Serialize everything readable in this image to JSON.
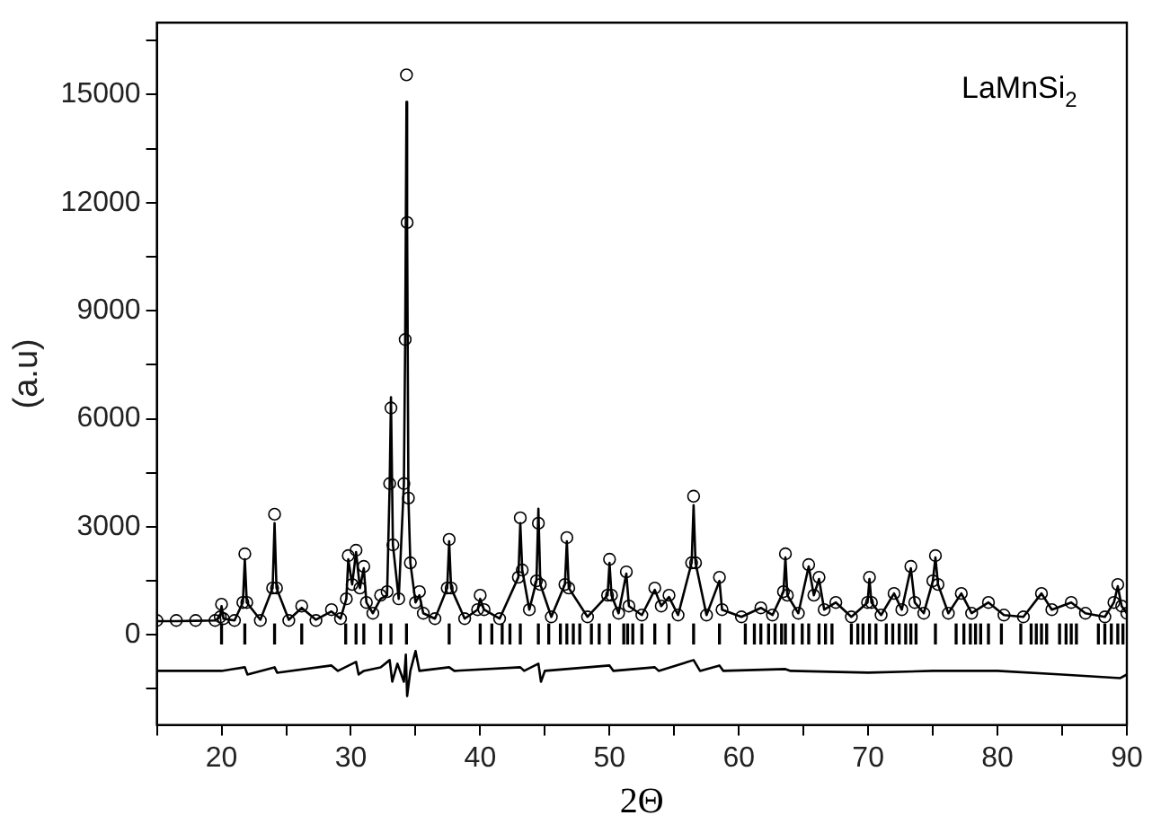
{
  "chart_data": {
    "type": "scatter",
    "xlabel": "2Θ",
    "ylabel": "(a.u)",
    "annotations": [
      "LaMnSi$_{2}$"
    ],
    "xlim": [
      15,
      90
    ],
    "xticks": [
      {
        "value": 15,
        "label": null
      },
      20,
      {
        "value": 25,
        "label": null
      },
      30,
      {
        "value": 35,
        "label": null
      },
      40,
      {
        "value": 45,
        "label": null
      },
      50,
      {
        "value": 55,
        "label": null
      },
      60,
      {
        "value": 65,
        "label": null
      },
      70,
      {
        "value": 75,
        "label": null
      },
      80,
      {
        "value": 85,
        "label": null
      },
      90
    ],
    "ylim": [
      -2500,
      17000
    ],
    "yticks": [
      {
        "value": -1500,
        "label": null
      },
      0,
      {
        "value": 1500,
        "label": null
      },
      3000,
      {
        "value": 4500,
        "label": null
      },
      6000,
      {
        "value": 7500,
        "label": null
      },
      9000,
      {
        "value": 10500,
        "label": null
      },
      12000,
      {
        "value": 13500,
        "label": null
      },
      15000,
      {
        "value": 16500,
        "label": null
      }
    ],
    "grid": false,
    "legend": false,
    "series": [
      {
        "marker": "circle",
        "color": "#000000",
        "x": [
          15,
          16.5,
          18,
          19.5,
          19.9,
          20.0,
          20.15,
          21,
          21.65,
          21.8,
          21.95,
          23,
          23.95,
          24.1,
          24.25,
          25.2,
          26.2,
          27.3,
          28.5,
          29.2,
          29.65,
          29.8,
          30.1,
          30.4,
          30.7,
          31.0,
          31.2,
          31.7,
          32.3,
          32.8,
          33.0,
          33.1,
          33.25,
          33.7,
          34.1,
          34.2,
          34.3,
          34.35,
          34.45,
          34.6,
          35.0,
          35.3,
          35.6,
          36.5,
          37.45,
          37.6,
          37.75,
          38.8,
          39.8,
          40.0,
          40.3,
          41.5,
          42.95,
          43.1,
          43.25,
          43.8,
          44.35,
          44.5,
          44.65,
          45.5,
          46.55,
          46.7,
          46.85,
          48.3,
          49.85,
          50.0,
          50.15,
          50.7,
          51.3,
          51.5,
          52.5,
          53.5,
          54.0,
          54.6,
          55.3,
          56.35,
          56.5,
          56.65,
          57.5,
          58.5,
          58.7,
          60.2,
          61.7,
          62.6,
          63.45,
          63.6,
          63.75,
          64.6,
          65.4,
          65.8,
          66.2,
          66.6,
          67.5,
          68.7,
          69.95,
          70.1,
          70.25,
          71.0,
          72.0,
          72.6,
          73.3,
          73.6,
          74.3,
          75.0,
          75.2,
          75.4,
          76.2,
          77.2,
          78.0,
          79.3,
          80.5,
          82.0,
          83.4,
          84.2,
          85.7,
          86.8,
          88.3,
          89.0,
          89.3,
          89.6,
          90
        ],
        "values": [
          400,
          400,
          400,
          400,
          500,
          850,
          450,
          400,
          900,
          2250,
          900,
          400,
          1300,
          3350,
          1300,
          400,
          800,
          400,
          700,
          450,
          1000,
          2200,
          1400,
          2350,
          1300,
          1900,
          900,
          600,
          1100,
          1200,
          4200,
          6300,
          2500,
          1000,
          4200,
          8200,
          15550,
          11450,
          3800,
          2000,
          900,
          1200,
          600,
          450,
          1300,
          2650,
          1300,
          450,
          700,
          1100,
          700,
          450,
          1600,
          3250,
          1800,
          700,
          1500,
          3100,
          1400,
          500,
          1400,
          2700,
          1300,
          500,
          1100,
          2100,
          1100,
          600,
          1750,
          800,
          550,
          1300,
          800,
          1100,
          550,
          2000,
          3850,
          2000,
          550,
          1600,
          700,
          500,
          750,
          550,
          1200,
          2250,
          1100,
          600,
          1950,
          1100,
          1600,
          700,
          900,
          500,
          900,
          1600,
          900,
          550,
          1150,
          700,
          1900,
          900,
          600,
          1500,
          2200,
          1400,
          600,
          1150,
          600,
          900,
          550,
          500,
          1150,
          700,
          900,
          600,
          500,
          900,
          1400,
          800,
          600
        ]
      },
      {
        "type": "line",
        "marker": "none",
        "color": "#000000",
        "x": [
          15,
          16.5,
          18,
          19.5,
          19.9,
          20.0,
          20.15,
          21,
          21.65,
          21.8,
          21.95,
          23,
          23.95,
          24.1,
          24.25,
          25.2,
          26.2,
          27.3,
          28.5,
          29.2,
          29.65,
          29.8,
          30.1,
          30.4,
          30.7,
          31.0,
          31.2,
          31.7,
          32.3,
          32.8,
          33.0,
          33.1,
          33.25,
          33.7,
          34.1,
          34.2,
          34.3,
          34.35,
          34.45,
          34.6,
          35.0,
          35.3,
          35.6,
          36.5,
          37.45,
          37.6,
          37.75,
          38.8,
          39.8,
          40.0,
          40.3,
          41.5,
          42.95,
          43.1,
          43.25,
          43.8,
          44.35,
          44.5,
          44.65,
          45.5,
          46.55,
          46.7,
          46.85,
          48.3,
          49.85,
          50.0,
          50.15,
          50.7,
          51.3,
          51.5,
          52.5,
          53.5,
          54.0,
          54.6,
          55.3,
          56.35,
          56.5,
          56.65,
          57.5,
          58.5,
          58.7,
          60.2,
          61.7,
          62.6,
          63.45,
          63.6,
          63.75,
          64.6,
          65.4,
          65.8,
          66.2,
          66.6,
          67.5,
          68.7,
          69.95,
          70.1,
          70.25,
          71.0,
          72.0,
          72.6,
          73.3,
          73.6,
          74.3,
          75.0,
          75.2,
          75.4,
          76.2,
          77.2,
          78.0,
          79.3,
          80.5,
          82.0,
          83.4,
          84.2,
          85.7,
          86.8,
          88.3,
          89.0,
          89.3,
          89.6,
          90
        ],
        "values": [
          380,
          380,
          390,
          400,
          500,
          800,
          450,
          400,
          900,
          2100,
          900,
          420,
          1300,
          3100,
          1300,
          420,
          750,
          420,
          650,
          450,
          1000,
          2100,
          1400,
          2300,
          1300,
          1850,
          900,
          600,
          1000,
          1100,
          4200,
          6600,
          2500,
          1000,
          4200,
          8200,
          14800,
          11450,
          3800,
          2000,
          900,
          1100,
          600,
          450,
          1300,
          2600,
          1300,
          450,
          700,
          1000,
          700,
          450,
          1600,
          3100,
          1800,
          700,
          1500,
          3500,
          1400,
          500,
          1400,
          2600,
          1300,
          500,
          1100,
          2000,
          1100,
          600,
          1700,
          800,
          550,
          1250,
          800,
          1050,
          550,
          2000,
          3600,
          2000,
          550,
          1500,
          700,
          500,
          750,
          550,
          1200,
          2150,
          1100,
          600,
          1900,
          1100,
          1550,
          700,
          900,
          500,
          900,
          1550,
          900,
          550,
          1150,
          700,
          1850,
          900,
          600,
          1500,
          2150,
          1400,
          600,
          1150,
          600,
          900,
          550,
          500,
          1150,
          700,
          900,
          600,
          500,
          900,
          1350,
          800,
          600
        ]
      },
      {
        "type": "bar",
        "color": "#000000",
        "base": [
          -250,
          -250,
          -250,
          -250,
          -250,
          -250,
          -250,
          -250,
          -250,
          -250,
          -250,
          -250,
          -250,
          -250,
          -250,
          -250,
          -250,
          -250,
          -250,
          -250,
          -250,
          -250,
          -250,
          -250,
          -250,
          -250,
          -250,
          -250,
          -250,
          -250,
          -250,
          -250,
          -250,
          -250,
          -250,
          -250,
          -250,
          -250,
          -250,
          -250,
          -250,
          -250,
          -250,
          -250,
          -250,
          -250,
          -250,
          -250,
          -250,
          -250,
          -250,
          -250,
          -250,
          -250,
          -250,
          -250,
          -250,
          -250,
          -250,
          -250,
          -250,
          -250,
          -250,
          -250,
          -250,
          -250,
          -250,
          -250,
          -250,
          -250,
          -250,
          -250,
          -250,
          -250,
          -250,
          -250,
          -250,
          -250,
          -250
        ],
        "x": [
          20,
          21.8,
          24.1,
          26.2,
          29.6,
          30.4,
          31.0,
          32.3,
          33.1,
          34.3,
          37.6,
          40.0,
          40.9,
          41.7,
          42.3,
          43.1,
          44.5,
          45.3,
          46.2,
          46.7,
          47.2,
          47.7,
          48.6,
          49.2,
          50.0,
          51.1,
          51.4,
          51.8,
          52.5,
          53.5,
          54.6,
          56.5,
          58.5,
          60.5,
          61.2,
          61.7,
          62.3,
          62.8,
          63.3,
          63.6,
          64.2,
          64.9,
          65.4,
          66.2,
          66.7,
          67.2,
          68.7,
          69.2,
          69.6,
          70.1,
          70.6,
          71.4,
          71.9,
          72.4,
          72.9,
          73.3,
          73.7,
          75.2,
          76.8,
          77.4,
          77.9,
          78.3,
          78.7,
          79.3,
          80.3,
          81.8,
          82.6,
          83.0,
          83.4,
          83.8,
          84.8,
          85.3,
          85.7,
          86.1,
          87.8,
          88.3,
          88.8,
          89.3,
          89.7
        ],
        "values": [
          550,
          550,
          550,
          550,
          550,
          550,
          550,
          550,
          550,
          550,
          550,
          550,
          550,
          550,
          550,
          550,
          550,
          550,
          550,
          550,
          550,
          550,
          550,
          550,
          550,
          550,
          550,
          550,
          550,
          550,
          550,
          550,
          550,
          550,
          550,
          550,
          550,
          550,
          550,
          550,
          550,
          550,
          550,
          550,
          550,
          550,
          550,
          550,
          550,
          550,
          550,
          550,
          550,
          550,
          550,
          550,
          550,
          550,
          550,
          550,
          550,
          550,
          550,
          550,
          550,
          550,
          550,
          550,
          550,
          550,
          550,
          550,
          550,
          550,
          550,
          550,
          550,
          550,
          550
        ]
      },
      {
        "type": "line",
        "marker": "none",
        "color": "#000000",
        "x": [
          15,
          20,
          21.8,
          22,
          24.1,
          24.3,
          28.5,
          29,
          30.4,
          30.6,
          31,
          32.3,
          33.0,
          33.2,
          33.6,
          34.1,
          34.25,
          34.35,
          34.6,
          35.0,
          35.3,
          37.6,
          38,
          43.1,
          43.4,
          44.5,
          44.7,
          45,
          50.0,
          50.3,
          53.5,
          53.8,
          56.5,
          57,
          58.5,
          58.8,
          63.6,
          64,
          70,
          75,
          80,
          85,
          89.5,
          90
        ],
        "values": [
          -1000,
          -1000,
          -900,
          -1100,
          -900,
          -1050,
          -850,
          -1000,
          -750,
          -1100,
          -1000,
          -900,
          -700,
          -1300,
          -800,
          -1300,
          -550,
          -1700,
          -1000,
          -450,
          -1000,
          -900,
          -1000,
          -900,
          -1000,
          -800,
          -1300,
          -1000,
          -850,
          -1000,
          -900,
          -1000,
          -700,
          -1000,
          -850,
          -1000,
          -950,
          -1000,
          -1050,
          -1000,
          -1000,
          -1100,
          -1200,
          -1100
        ]
      }
    ]
  }
}
